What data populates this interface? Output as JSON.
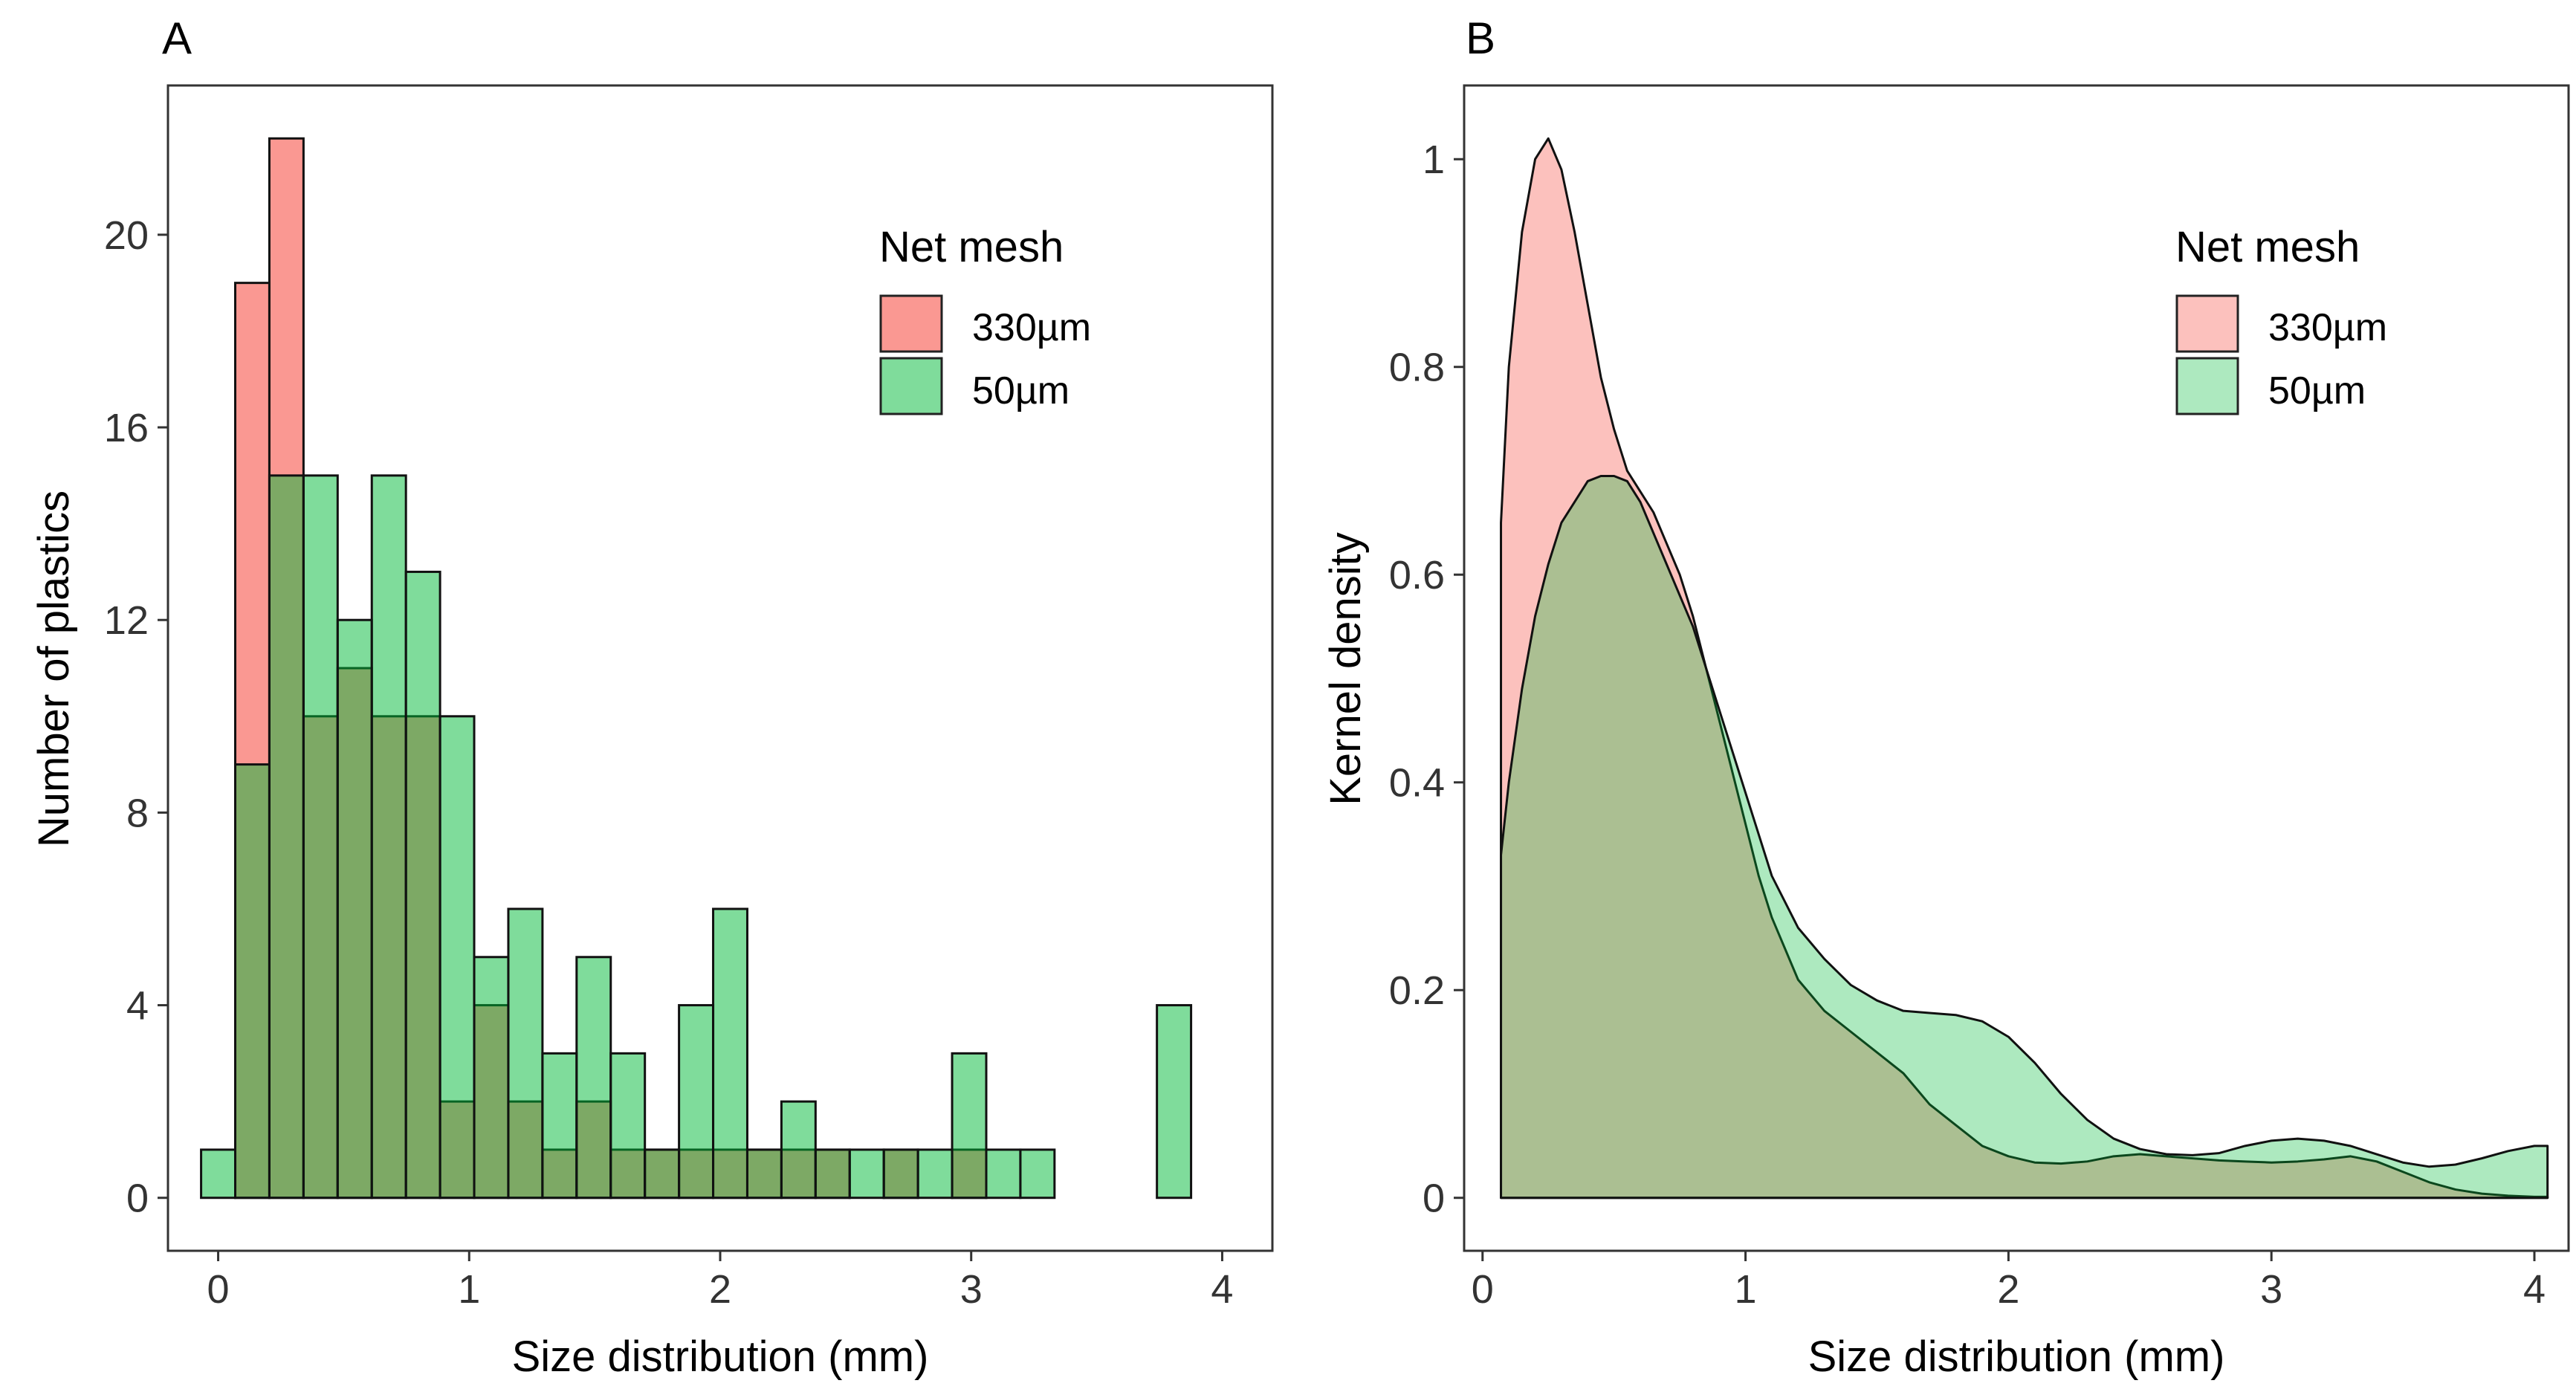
{
  "chart_data": [
    {
      "panel": "A",
      "type": "bar",
      "subtype": "overlaid histogram",
      "xlabel": "Size distribution (mm)",
      "ylabel": "Number of plastics",
      "xlim": [
        -0.2,
        4.2
      ],
      "ylim": [
        -1.1,
        23.1
      ],
      "x_ticks": [
        0,
        1,
        2,
        3,
        4
      ],
      "y_ticks": [
        0,
        4,
        8,
        12,
        16,
        20
      ],
      "bin_width": 0.136,
      "bin_start": -0.068,
      "legend": {
        "title": "Net mesh",
        "position": "top-right"
      },
      "series": [
        {
          "name": "330µm",
          "color": "#F8766D",
          "values": [
            0,
            19,
            22,
            10,
            11,
            10,
            10,
            2,
            4,
            2,
            1,
            2,
            1,
            1,
            1,
            1,
            1,
            1,
            1,
            0,
            1,
            0,
            1,
            0,
            0,
            0,
            0,
            0,
            0
          ]
        },
        {
          "name": "50µm",
          "color": "#00BA38",
          "values": [
            1,
            9,
            15,
            15,
            12,
            15,
            13,
            10,
            5,
            6,
            3,
            5,
            3,
            1,
            4,
            6,
            1,
            2,
            1,
            1,
            1,
            1,
            3,
            1,
            1,
            0,
            0,
            0,
            4
          ]
        }
      ]
    },
    {
      "panel": "B",
      "type": "area",
      "subtype": "kernel density",
      "xlabel": "Size distribution (mm)",
      "ylabel": "Kernel density",
      "xlim": [
        -0.07,
        4.13
      ],
      "ylim": [
        -0.051,
        1.071
      ],
      "x_ticks": [
        0,
        1,
        2,
        3,
        4
      ],
      "y_ticks": [
        0,
        0.2,
        0.4,
        0.6,
        0.8,
        1
      ],
      "legend": {
        "title": "Net mesh",
        "position": "top-right"
      },
      "series": [
        {
          "name": "330µm",
          "color": "#F8766D",
          "x": [
            0.07,
            0.1,
            0.15,
            0.2,
            0.25,
            0.3,
            0.35,
            0.4,
            0.45,
            0.5,
            0.55,
            0.6,
            0.65,
            0.7,
            0.75,
            0.8,
            0.85,
            0.9,
            0.95,
            1.0,
            1.05,
            1.1,
            1.2,
            1.3,
            1.4,
            1.5,
            1.6,
            1.7,
            1.8,
            1.9,
            2.0,
            2.1,
            2.2,
            2.3,
            2.4,
            2.5,
            2.6,
            2.7,
            2.8,
            2.9,
            3.0,
            3.1,
            3.2,
            3.3,
            3.4,
            3.5,
            3.6,
            3.7,
            3.8,
            3.9,
            4.0,
            4.05
          ],
          "y": [
            0.65,
            0.8,
            0.93,
            1.0,
            1.02,
            0.99,
            0.93,
            0.86,
            0.79,
            0.74,
            0.7,
            0.68,
            0.66,
            0.63,
            0.6,
            0.56,
            0.51,
            0.46,
            0.41,
            0.36,
            0.31,
            0.27,
            0.21,
            0.18,
            0.16,
            0.14,
            0.12,
            0.09,
            0.07,
            0.05,
            0.04,
            0.034,
            0.033,
            0.035,
            0.04,
            0.042,
            0.04,
            0.038,
            0.036,
            0.035,
            0.034,
            0.035,
            0.037,
            0.04,
            0.035,
            0.025,
            0.015,
            0.008,
            0.004,
            0.002,
            0.001,
            0.001
          ]
        },
        {
          "name": "50µm",
          "color": "#00BA38",
          "x": [
            0.07,
            0.1,
            0.15,
            0.2,
            0.25,
            0.3,
            0.35,
            0.4,
            0.45,
            0.5,
            0.55,
            0.6,
            0.65,
            0.7,
            0.75,
            0.8,
            0.85,
            0.9,
            0.95,
            1.0,
            1.05,
            1.1,
            1.2,
            1.3,
            1.4,
            1.5,
            1.6,
            1.7,
            1.8,
            1.9,
            2.0,
            2.1,
            2.2,
            2.3,
            2.4,
            2.5,
            2.6,
            2.7,
            2.8,
            2.9,
            3.0,
            3.1,
            3.2,
            3.3,
            3.4,
            3.5,
            3.6,
            3.7,
            3.8,
            3.9,
            4.0,
            4.05
          ],
          "y": [
            0.33,
            0.4,
            0.49,
            0.56,
            0.61,
            0.65,
            0.67,
            0.69,
            0.695,
            0.695,
            0.69,
            0.67,
            0.64,
            0.61,
            0.58,
            0.55,
            0.51,
            0.47,
            0.43,
            0.39,
            0.35,
            0.31,
            0.26,
            0.23,
            0.205,
            0.19,
            0.18,
            0.178,
            0.176,
            0.17,
            0.155,
            0.13,
            0.1,
            0.075,
            0.057,
            0.047,
            0.042,
            0.041,
            0.043,
            0.05,
            0.055,
            0.057,
            0.055,
            0.05,
            0.042,
            0.034,
            0.03,
            0.032,
            0.038,
            0.045,
            0.05,
            0.05
          ]
        }
      ]
    }
  ]
}
